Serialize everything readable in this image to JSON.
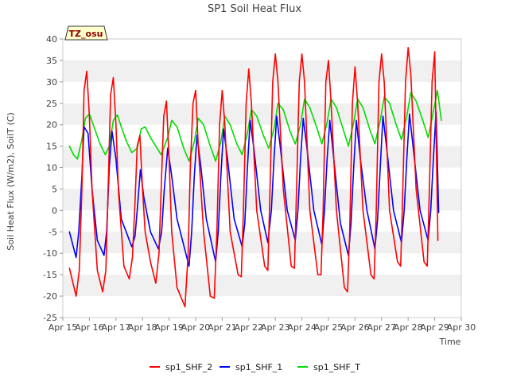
{
  "chart_data": {
    "type": "line",
    "title": "SP1 Soil Heat Flux",
    "xlabel": "Time",
    "ylabel": "Soil Heat Flux (W/m2), SoilT (C)",
    "badge": "TZ_osu",
    "xlim": [
      15,
      30
    ],
    "ylim": [
      -25,
      40
    ],
    "x_ticks": [
      15,
      16,
      17,
      18,
      19,
      20,
      21,
      22,
      23,
      24,
      25,
      26,
      27,
      28,
      29,
      30
    ],
    "x_tick_labels": [
      "Apr 15",
      "Apr 16",
      "Apr 17",
      "Apr 18",
      "Apr 19",
      "Apr 20",
      "Apr 21",
      "Apr 22",
      "Apr 23",
      "Apr 24",
      "Apr 25",
      "Apr 26",
      "Apr 27",
      "Apr 28",
      "Apr 29",
      "Apr 30"
    ],
    "y_ticks": [
      -25,
      -20,
      -15,
      -10,
      -5,
      0,
      5,
      10,
      15,
      20,
      25,
      30,
      35,
      40
    ],
    "y_tick_labels": [
      "-25",
      "-20",
      "-15",
      "-10",
      "-5",
      "0",
      "5",
      "10",
      "15",
      "20",
      "25",
      "30",
      "35",
      "40"
    ],
    "grid": "horizontal bands",
    "legend_position": "bottom",
    "series": [
      {
        "name": "sp1_SHF_2",
        "color": "#ff0000",
        "x": [
          15.25,
          15.5,
          15.62,
          15.72,
          15.8,
          15.9,
          16.0,
          16.1,
          16.3,
          16.5,
          16.62,
          16.72,
          16.8,
          16.9,
          17.0,
          17.1,
          17.3,
          17.5,
          17.62,
          17.72,
          17.8,
          17.9,
          18.0,
          18.1,
          18.3,
          18.5,
          18.62,
          18.72,
          18.8,
          18.9,
          19.0,
          19.1,
          19.3,
          19.6,
          19.72,
          19.8,
          19.9,
          20.0,
          20.1,
          20.3,
          20.55,
          20.7,
          20.8,
          20.9,
          21.0,
          21.1,
          21.3,
          21.6,
          21.72,
          21.8,
          21.9,
          22.0,
          22.1,
          22.3,
          22.6,
          22.72,
          22.8,
          22.9,
          23.0,
          23.1,
          23.3,
          23.6,
          23.72,
          23.8,
          23.9,
          24.0,
          24.1,
          24.3,
          24.6,
          24.72,
          24.8,
          24.9,
          25.0,
          25.1,
          25.3,
          25.6,
          25.72,
          25.8,
          25.9,
          26.0,
          26.1,
          26.3,
          26.6,
          26.72,
          26.8,
          26.9,
          27.0,
          27.1,
          27.3,
          27.6,
          27.72,
          27.8,
          27.9,
          28.0,
          28.1,
          28.3,
          28.6,
          28.72,
          28.8,
          28.9,
          29.0,
          29.12
        ],
        "values": [
          -13.5,
          -20.0,
          -14.0,
          5.0,
          28.0,
          32.5,
          22.0,
          5.0,
          -14.0,
          -19.0,
          -14.0,
          8.0,
          27.0,
          31.0,
          20.0,
          4.0,
          -13.0,
          -16.0,
          -11.0,
          2.0,
          15.0,
          17.5,
          5.0,
          -5.0,
          -12.0,
          -17.0,
          -10.0,
          8.0,
          22.0,
          25.5,
          12.0,
          -5.0,
          -18.0,
          -22.5,
          -10.0,
          10.0,
          25.0,
          28.0,
          15.0,
          -5.0,
          -20.0,
          -20.5,
          -5.0,
          20.0,
          28.0,
          20.0,
          -5.0,
          -15.0,
          -15.5,
          0.0,
          25.0,
          33.0,
          25.0,
          0.0,
          -13.0,
          -14.0,
          5.0,
          30.0,
          36.5,
          30.0,
          5.0,
          -13.0,
          -13.5,
          5.0,
          30.0,
          36.5,
          30.0,
          0.0,
          -15.0,
          -15.0,
          0.0,
          30.0,
          35.0,
          25.0,
          0.0,
          -18.0,
          -19.0,
          -5.0,
          25.0,
          33.5,
          25.0,
          0.0,
          -15.0,
          -16.0,
          0.0,
          30.0,
          36.5,
          30.0,
          0.0,
          -12.0,
          -13.0,
          5.0,
          30.0,
          38.0,
          32.0,
          5.0,
          -12.0,
          -13.0,
          5.0,
          30.0,
          37.0,
          -7.0
        ]
      },
      {
        "name": "sp1_SHF_1",
        "color": "#0000ff",
        "x": [
          15.25,
          15.5,
          15.6,
          15.72,
          15.8,
          15.95,
          16.1,
          16.3,
          16.55,
          16.65,
          16.75,
          16.85,
          17.0,
          17.2,
          17.6,
          17.72,
          17.8,
          17.92,
          18.05,
          18.3,
          18.6,
          18.72,
          18.82,
          18.95,
          19.1,
          19.3,
          19.75,
          19.85,
          19.95,
          20.05,
          20.2,
          20.4,
          20.75,
          20.85,
          20.95,
          21.05,
          21.2,
          21.45,
          21.75,
          21.85,
          21.95,
          22.05,
          22.2,
          22.45,
          22.72,
          22.85,
          22.95,
          23.05,
          23.2,
          23.45,
          23.75,
          23.85,
          23.95,
          24.05,
          24.2,
          24.45,
          24.75,
          24.85,
          24.95,
          25.05,
          25.2,
          25.45,
          25.75,
          25.85,
          25.95,
          26.05,
          26.2,
          26.45,
          26.75,
          26.85,
          26.95,
          27.05,
          27.2,
          27.45,
          27.75,
          27.85,
          27.95,
          28.05,
          28.2,
          28.45,
          28.75,
          28.85,
          28.95,
          29.05,
          29.15
        ],
        "values": [
          -5.0,
          -11.0,
          -5.0,
          8.0,
          19.5,
          18.0,
          5.0,
          -7.0,
          -10.5,
          -5.0,
          10.0,
          18.5,
          12.0,
          -2.0,
          -8.5,
          -6.0,
          0.0,
          9.5,
          3.0,
          -5.0,
          -9.0,
          -5.0,
          5.0,
          14.5,
          8.0,
          -2.0,
          -13.0,
          -5.0,
          8.0,
          17.5,
          10.0,
          -2.0,
          -12.0,
          -5.0,
          8.0,
          19.0,
          12.0,
          -2.0,
          -8.5,
          -3.0,
          10.0,
          21.0,
          14.0,
          0.0,
          -7.5,
          0.0,
          12.0,
          22.0,
          14.0,
          0.0,
          -7.0,
          0.0,
          12.0,
          21.5,
          14.0,
          0.0,
          -8.0,
          0.0,
          12.0,
          21.0,
          12.0,
          -3.0,
          -10.5,
          -3.0,
          10.0,
          21.0,
          12.0,
          0.0,
          -9.0,
          -2.0,
          10.0,
          22.0,
          14.0,
          0.0,
          -7.5,
          0.0,
          12.0,
          22.5,
          14.0,
          0.0,
          -7.0,
          0.0,
          12.0,
          23.0,
          -0.5
        ]
      },
      {
        "name": "sp1_SHF_T",
        "color": "#00dd00",
        "x": [
          15.25,
          15.4,
          15.55,
          15.7,
          15.85,
          16.0,
          16.2,
          16.4,
          16.6,
          16.75,
          16.9,
          17.05,
          17.2,
          17.4,
          17.6,
          17.8,
          17.95,
          18.1,
          18.3,
          18.5,
          18.7,
          18.95,
          19.1,
          19.3,
          19.55,
          19.75,
          19.95,
          20.1,
          20.3,
          20.55,
          20.75,
          20.95,
          21.1,
          21.3,
          21.55,
          21.75,
          21.95,
          22.1,
          22.3,
          22.55,
          22.75,
          22.95,
          23.1,
          23.3,
          23.55,
          23.75,
          23.95,
          24.1,
          24.3,
          24.55,
          24.75,
          24.95,
          25.1,
          25.3,
          25.55,
          25.75,
          25.95,
          26.1,
          26.3,
          26.55,
          26.75,
          26.95,
          27.1,
          27.3,
          27.55,
          27.75,
          27.95,
          28.1,
          28.3,
          28.55,
          28.75,
          28.95,
          29.1,
          29.25
        ],
        "values": [
          15.0,
          13.0,
          12.0,
          16.0,
          21.5,
          22.5,
          19.0,
          15.5,
          13.0,
          15.0,
          21.0,
          22.3,
          19.5,
          16.0,
          13.5,
          14.5,
          19.0,
          19.5,
          17.0,
          15.0,
          13.0,
          17.0,
          21.0,
          19.5,
          14.5,
          11.5,
          16.0,
          21.5,
          20.0,
          15.0,
          11.5,
          16.0,
          22.0,
          20.0,
          15.5,
          13.0,
          18.0,
          23.5,
          22.0,
          17.5,
          14.5,
          19.0,
          25.0,
          23.5,
          18.5,
          15.5,
          20.0,
          26.0,
          24.0,
          19.5,
          15.5,
          20.5,
          26.0,
          24.0,
          19.0,
          15.0,
          20.5,
          26.0,
          24.0,
          19.0,
          15.5,
          21.0,
          26.5,
          25.0,
          20.0,
          16.5,
          22.0,
          27.5,
          25.5,
          21.0,
          17.0,
          23.0,
          28.0,
          21.0
        ]
      }
    ]
  }
}
